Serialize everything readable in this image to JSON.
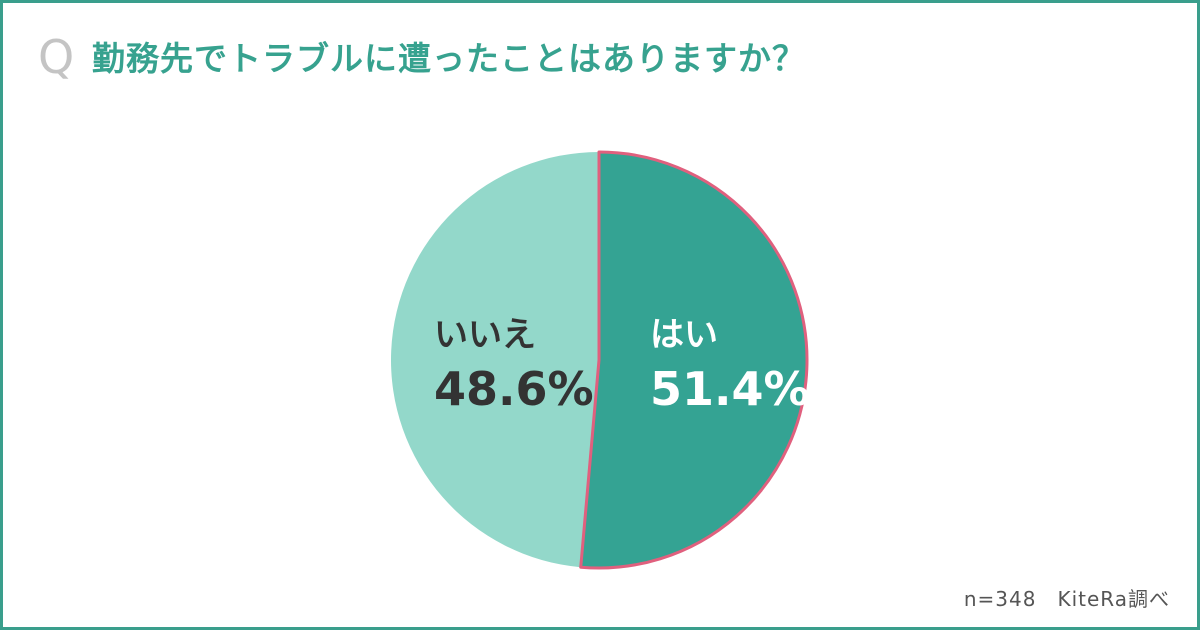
{
  "question": {
    "mark": "Q",
    "text": "勤務先でトラブルに遭ったことはありますか？"
  },
  "chart_data": {
    "type": "pie",
    "start_angle_deg": 0,
    "direction": "clockwise",
    "slices": [
      {
        "label": "はい",
        "value": 51.4,
        "display": "51.4%",
        "color": "#34a393",
        "stroke": "#e0607e",
        "text_color": "#ffffff"
      },
      {
        "label": "いいえ",
        "value": 48.6,
        "display": "48.6%",
        "color": "#93d8ca",
        "stroke": "none",
        "text_color": "#333333"
      }
    ]
  },
  "source": "n=348　KiteRa調べ"
}
